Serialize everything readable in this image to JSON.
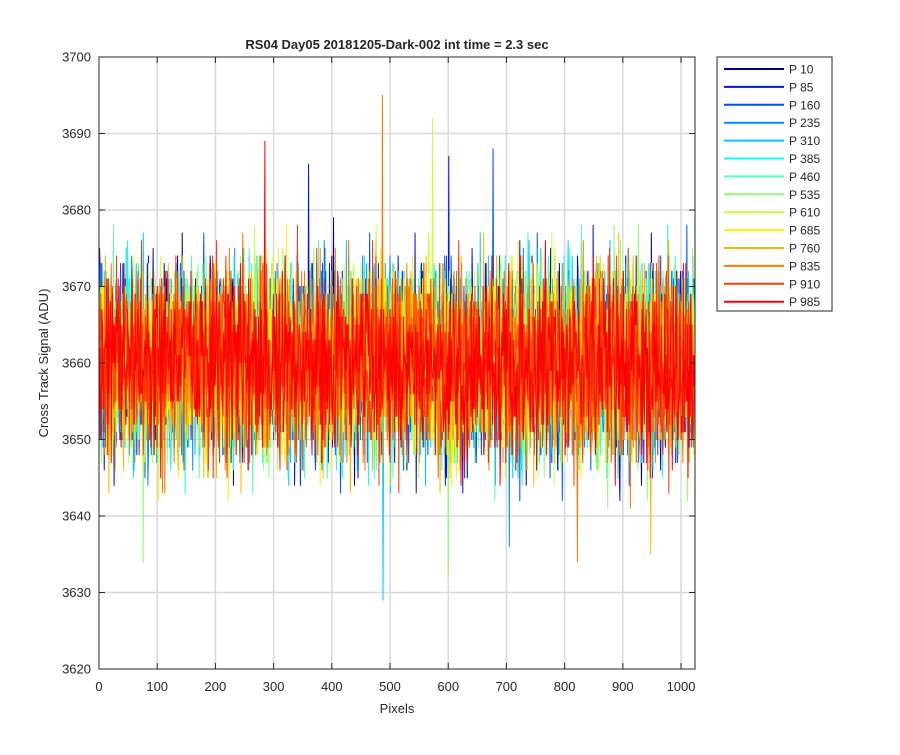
{
  "chart_data": {
    "type": "line",
    "title": "RS04 Day05 20181205-Dark-002 int time = 2.3 sec",
    "xlabel": "Pixels",
    "ylabel": "Cross Track Signal (ADU)",
    "xlim": [
      0,
      1024
    ],
    "ylim": [
      3620,
      3700
    ],
    "xticks": [
      0,
      100,
      200,
      300,
      400,
      500,
      600,
      700,
      800,
      900,
      1000
    ],
    "yticks": [
      3620,
      3630,
      3640,
      3650,
      3660,
      3670,
      3680,
      3690,
      3700
    ],
    "grid": true,
    "legend_position": "outside-top-right",
    "signal_mean": 3660,
    "signal_range_typical": [
      3642,
      3678
    ],
    "series": [
      {
        "name": "P 10",
        "color": "#00008F"
      },
      {
        "name": "P 85",
        "color": "#0014D8"
      },
      {
        "name": "P 160",
        "color": "#0050FF"
      },
      {
        "name": "P 235",
        "color": "#008CFF"
      },
      {
        "name": "P 310",
        "color": "#00C8FF"
      },
      {
        "name": "P 385",
        "color": "#14FFEB"
      },
      {
        "name": "P 460",
        "color": "#50FFAF"
      },
      {
        "name": "P 535",
        "color": "#8CFF73"
      },
      {
        "name": "P 610",
        "color": "#C8FF37"
      },
      {
        "name": "P 685",
        "color": "#FFF000"
      },
      {
        "name": "P 760",
        "color": "#FFB400"
      },
      {
        "name": "P 835",
        "color": "#FF7800"
      },
      {
        "name": "P 910",
        "color": "#FF3C00"
      },
      {
        "name": "P 985",
        "color": "#FF0000"
      }
    ],
    "notable_extremes": [
      {
        "series": "P 835",
        "x": 487,
        "y": 3695
      },
      {
        "series": "P 610",
        "x": 573,
        "y": 3692
      },
      {
        "series": "P 985",
        "x": 285,
        "y": 3689
      },
      {
        "series": "P 160",
        "x": 677,
        "y": 3688
      },
      {
        "series": "P 85",
        "x": 601,
        "y": 3687
      },
      {
        "series": "P 85",
        "x": 360,
        "y": 3686
      },
      {
        "series": "P 310",
        "x": 488,
        "y": 3629
      },
      {
        "series": "P 535",
        "x": 600,
        "y": 3632
      },
      {
        "series": "P 535",
        "x": 76,
        "y": 3634
      },
      {
        "series": "P 835",
        "x": 822,
        "y": 3634
      },
      {
        "series": "P 760",
        "x": 948,
        "y": 3635
      },
      {
        "series": "P 235",
        "x": 705,
        "y": 3636
      }
    ]
  }
}
